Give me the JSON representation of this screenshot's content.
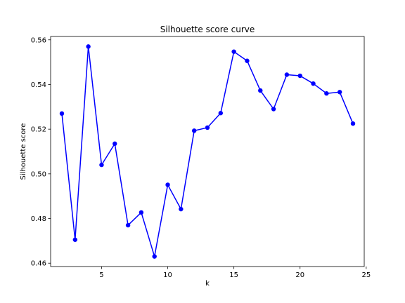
{
  "chart_data": {
    "type": "line",
    "title": "Silhouette score curve",
    "xlabel": "k",
    "ylabel": "Silhouette score",
    "xlim": [
      1.15,
      24.85
    ],
    "ylim": [
      0.4585,
      0.5615
    ],
    "xticks": [
      5,
      10,
      15,
      20,
      25
    ],
    "yticks": [
      0.46,
      0.48,
      0.5,
      0.52,
      0.54,
      0.56
    ],
    "ytick_labels": [
      "0.46",
      "0.48",
      "0.50",
      "0.52",
      "0.54",
      "0.56"
    ],
    "grid": false,
    "series": [
      {
        "color": "#0000ff",
        "marker": "circle",
        "x": [
          2,
          3,
          4,
          5,
          6,
          7,
          8,
          9,
          10,
          11,
          12,
          13,
          14,
          15,
          16,
          17,
          18,
          19,
          20,
          21,
          22,
          23,
          24
        ],
        "y": [
          0.527,
          0.4705,
          0.557,
          0.504,
          0.5135,
          0.477,
          0.4827,
          0.463,
          0.4951,
          0.4842,
          0.5193,
          0.5207,
          0.5272,
          0.5547,
          0.5506,
          0.5373,
          0.529,
          0.5444,
          0.5439,
          0.5404,
          0.536,
          0.5366,
          0.5225
        ]
      }
    ]
  }
}
